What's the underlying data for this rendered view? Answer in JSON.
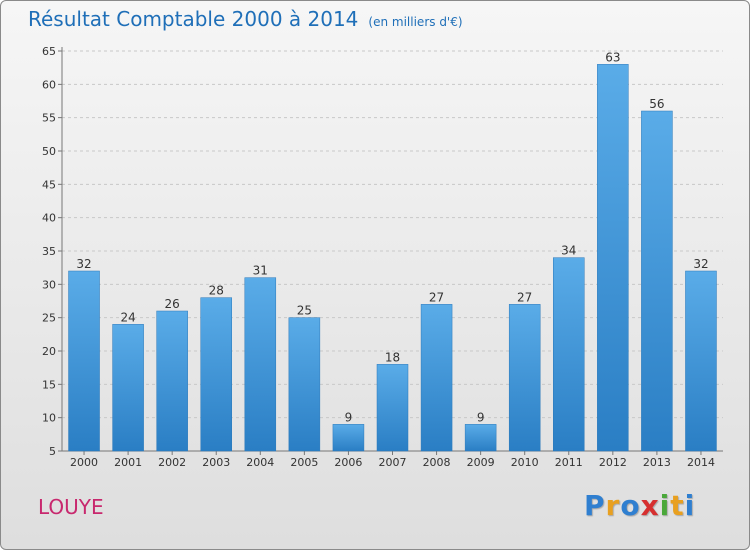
{
  "chart_data": {
    "type": "bar",
    "title": "Résultat Comptable 2000 à 2014",
    "subtitle": "(en milliers d'€)",
    "categories": [
      "2000",
      "2001",
      "2002",
      "2003",
      "2004",
      "2005",
      "2006",
      "2007",
      "2008",
      "2009",
      "2010",
      "2011",
      "2012",
      "2013",
      "2014"
    ],
    "values": [
      32,
      24,
      26,
      28,
      31,
      25,
      9,
      18,
      27,
      9,
      27,
      34,
      63,
      56,
      32
    ],
    "ylim": [
      5,
      65
    ],
    "yticks": [
      5,
      10,
      15,
      20,
      25,
      30,
      35,
      40,
      45,
      50,
      55,
      60,
      65
    ],
    "grid": true,
    "xlabel": "",
    "ylabel": ""
  },
  "commune": "LOUYE",
  "brand": {
    "letters": [
      "P",
      "r",
      "o",
      "x",
      "i",
      "t",
      "i"
    ],
    "colors": [
      "#2f7fd0",
      "#e8a020",
      "#2f7fd0",
      "#d62f2f",
      "#4aa83a",
      "#e8a020",
      "#2f7fd0"
    ]
  },
  "colors": {
    "bar_top": "#5aace8",
    "bar_bottom": "#2a7ec4",
    "title": "#1f6fb8",
    "commune": "#c8286e"
  }
}
